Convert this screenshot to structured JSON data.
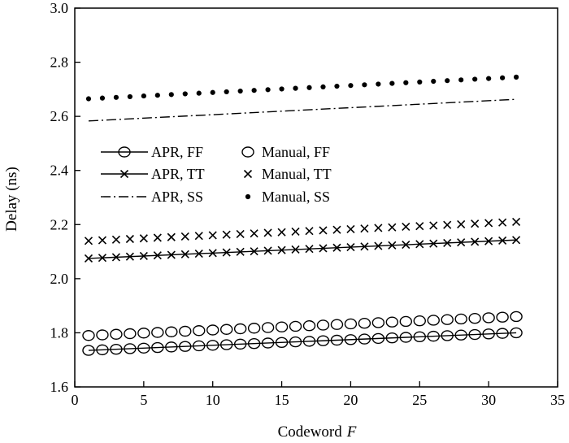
{
  "chart_data": {
    "type": "line",
    "xlabel": "Codeword",
    "xlabel_var": "F",
    "ylabel": "Delay (ns)",
    "xlim": [
      0,
      35
    ],
    "ylim": [
      1.6,
      3.0
    ],
    "xticks": [
      0,
      5,
      10,
      15,
      20,
      25,
      30,
      35
    ],
    "yticks": [
      1.6,
      1.8,
      2.0,
      2.2,
      2.4,
      2.6,
      2.8,
      3.0
    ],
    "x_tick_labels": [
      "0",
      "5",
      "10",
      "15",
      "20",
      "25",
      "30",
      "35"
    ],
    "y_tick_labels": [
      "1.6",
      "1.8",
      "2.0",
      "2.2",
      "2.4",
      "2.6",
      "2.8",
      "3.0"
    ],
    "grid": false,
    "legend_position": "left-middle",
    "series": [
      {
        "name": "APR, FF",
        "style": "solid-circle",
        "x_start": 1,
        "x_end": 32,
        "y_start": 1.735,
        "y_end": 1.8
      },
      {
        "name": "APR, TT",
        "style": "solid-cross",
        "x_start": 1,
        "x_end": 32,
        "y_start": 2.075,
        "y_end": 2.143
      },
      {
        "name": "APR, SS",
        "style": "dashdot",
        "x_start": 1,
        "x_end": 32,
        "y_start": 2.583,
        "y_end": 2.663
      },
      {
        "name": "Manual, FF",
        "style": "circle",
        "x_start": 1,
        "x_end": 32,
        "y_start": 1.79,
        "y_end": 1.86
      },
      {
        "name": "Manual, TT",
        "style": "cross",
        "x_start": 1,
        "x_end": 32,
        "y_start": 2.14,
        "y_end": 2.21
      },
      {
        "name": "Manual, SS",
        "style": "dot",
        "x_start": 1,
        "x_end": 32,
        "y_start": 2.665,
        "y_end": 2.745
      }
    ]
  }
}
